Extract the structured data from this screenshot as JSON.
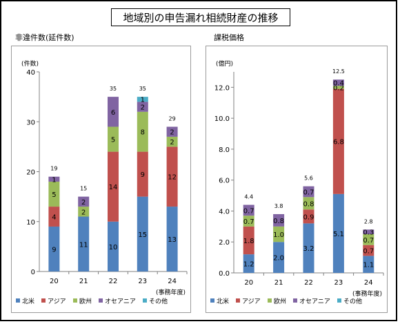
{
  "title": "地域別の申告漏れ相続財産の推移",
  "colors": {
    "north_america": "#4f81bd",
    "asia": "#c0504d",
    "europe": "#9bbb59",
    "oceania": "#8064a2",
    "other": "#4bacc6"
  },
  "chart_data": [
    {
      "type": "bar",
      "stacked": true,
      "title": "非違件数(延件数)",
      "ylabel": "(件数)",
      "xlabel": "(事務年度)",
      "categories": [
        "20",
        "21",
        "22",
        "23",
        "24"
      ],
      "ylim": [
        0,
        40
      ],
      "yticks": [
        "0",
        "10",
        "20",
        "30",
        "40"
      ],
      "totals": [
        "19",
        "15",
        "35",
        "35",
        "29"
      ],
      "series": [
        {
          "name": "北米",
          "color": "#4f81bd",
          "values": [
            9,
            11,
            10,
            15,
            13
          ],
          "labels": [
            "9",
            "11",
            "10",
            "15",
            "13"
          ]
        },
        {
          "name": "アジア",
          "color": "#c0504d",
          "values": [
            4,
            0,
            14,
            9,
            12
          ],
          "labels": [
            "4",
            "",
            "14",
            "9",
            "12"
          ]
        },
        {
          "name": "欧州",
          "color": "#9bbb59",
          "values": [
            5,
            2,
            5,
            8,
            2
          ],
          "labels": [
            "5",
            "2",
            "5",
            "8",
            "2"
          ]
        },
        {
          "name": "オセアニア",
          "color": "#8064a2",
          "values": [
            1,
            2,
            6,
            2,
            2
          ],
          "labels": [
            "1",
            "2",
            "6",
            "2",
            "2"
          ]
        },
        {
          "name": "その他",
          "color": "#4bacc6",
          "values": [
            0,
            0,
            0,
            1,
            0
          ],
          "labels": [
            "",
            "",
            "",
            "1",
            ""
          ]
        }
      ],
      "grid": false,
      "legend_position": "bottom"
    },
    {
      "type": "bar",
      "stacked": true,
      "title": "課税価格",
      "ylabel": "(億円)",
      "xlabel": "(事務年度)",
      "categories": [
        "20",
        "21",
        "22",
        "23",
        "24"
      ],
      "ylim": [
        0,
        12.5
      ],
      "yticks": [
        "0.0",
        "2.0",
        "4.0",
        "6.0",
        "8.0",
        "10.0",
        "12.0"
      ],
      "totals": [
        "4.4",
        "3.8",
        "5.6",
        "12.5",
        "2.8"
      ],
      "series": [
        {
          "name": "北米",
          "color": "#4f81bd",
          "values": [
            1.2,
            2.0,
            3.2,
            5.1,
            1.1
          ],
          "labels": [
            "1.2",
            "2.0",
            "3.2",
            "5.1",
            "1.1"
          ]
        },
        {
          "name": "アジア",
          "color": "#c0504d",
          "values": [
            1.8,
            0,
            0.9,
            6.8,
            0.7
          ],
          "labels": [
            "1.8",
            "",
            "0.9",
            "6.8",
            "0.7"
          ]
        },
        {
          "name": "欧州",
          "color": "#9bbb59",
          "values": [
            0.7,
            1.0,
            0.8,
            0.2,
            0.7
          ],
          "labels": [
            "0.7",
            "1.0",
            "0.8",
            "0.2",
            "0.7"
          ]
        },
        {
          "name": "オセアニア",
          "color": "#8064a2",
          "values": [
            0.7,
            0.8,
            0.7,
            0.4,
            0.3
          ],
          "labels": [
            "0.7",
            "0.8",
            "0.7",
            "0.4",
            "0.3"
          ]
        },
        {
          "name": "その他",
          "color": "#4bacc6",
          "values": [
            0,
            0,
            0,
            0,
            0
          ],
          "labels": [
            "",
            "",
            "",
            "",
            ""
          ]
        }
      ],
      "grid": false,
      "legend_position": "bottom"
    }
  ]
}
